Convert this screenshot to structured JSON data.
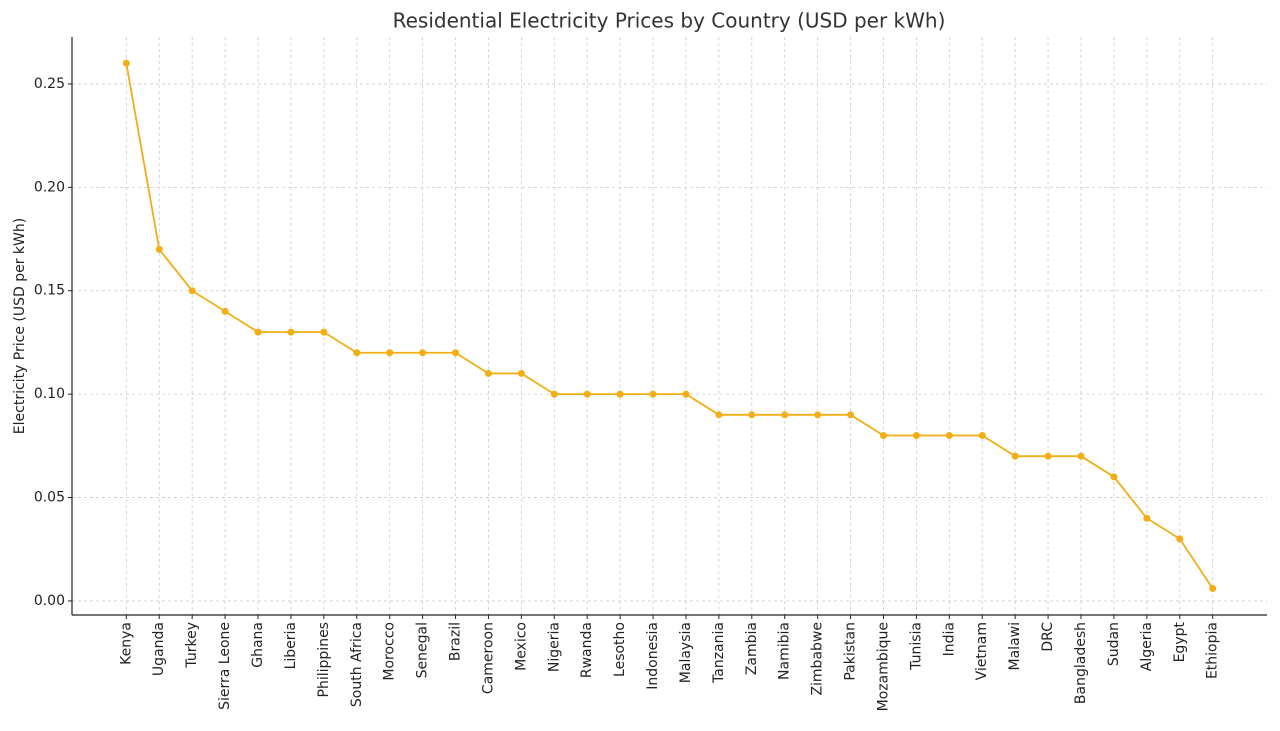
{
  "chart_data": {
    "type": "line",
    "title": "Residential Electricity Prices by Country (USD per kWh)",
    "y_label": "Electricity Price (USD per kWh)",
    "categories": [
      "Kenya",
      "Uganda",
      "Turkey",
      "Sierra Leone",
      "Ghana",
      "Liberia",
      "Philippines",
      "South Africa",
      "Morocco",
      "Senegal",
      "Brazil",
      "Cameroon",
      "Mexico",
      "Nigeria",
      "Rwanda",
      "Lesotho",
      "Indonesia",
      "Malaysia",
      "Tanzania",
      "Zambia",
      "Namibia",
      "Zimbabwe",
      "Pakistan",
      "Mozambique",
      "Tunisia",
      "India",
      "Vietnam",
      "Malawi",
      "DRC",
      "Bangladesh",
      "Sudan",
      "Algeria",
      "Egypt",
      "Ethiopia"
    ],
    "values": [
      0.26,
      0.17,
      0.15,
      0.14,
      0.13,
      0.13,
      0.13,
      0.12,
      0.12,
      0.12,
      0.12,
      0.11,
      0.11,
      0.1,
      0.1,
      0.1,
      0.1,
      0.1,
      0.09,
      0.09,
      0.09,
      0.09,
      0.09,
      0.08,
      0.08,
      0.08,
      0.08,
      0.07,
      0.07,
      0.07,
      0.06,
      0.04,
      0.03,
      0.006
    ],
    "color": "#f2ae14",
    "ylim": [
      -0.0068,
      0.2727
    ],
    "yticks": [
      {
        "value": 0,
        "label": "0.00"
      },
      0.05,
      {
        "value": 0.1,
        "label": "0.10"
      },
      0.15,
      {
        "value": 0.2,
        "label": "0.20"
      },
      0.25
    ],
    "grid": true
  }
}
